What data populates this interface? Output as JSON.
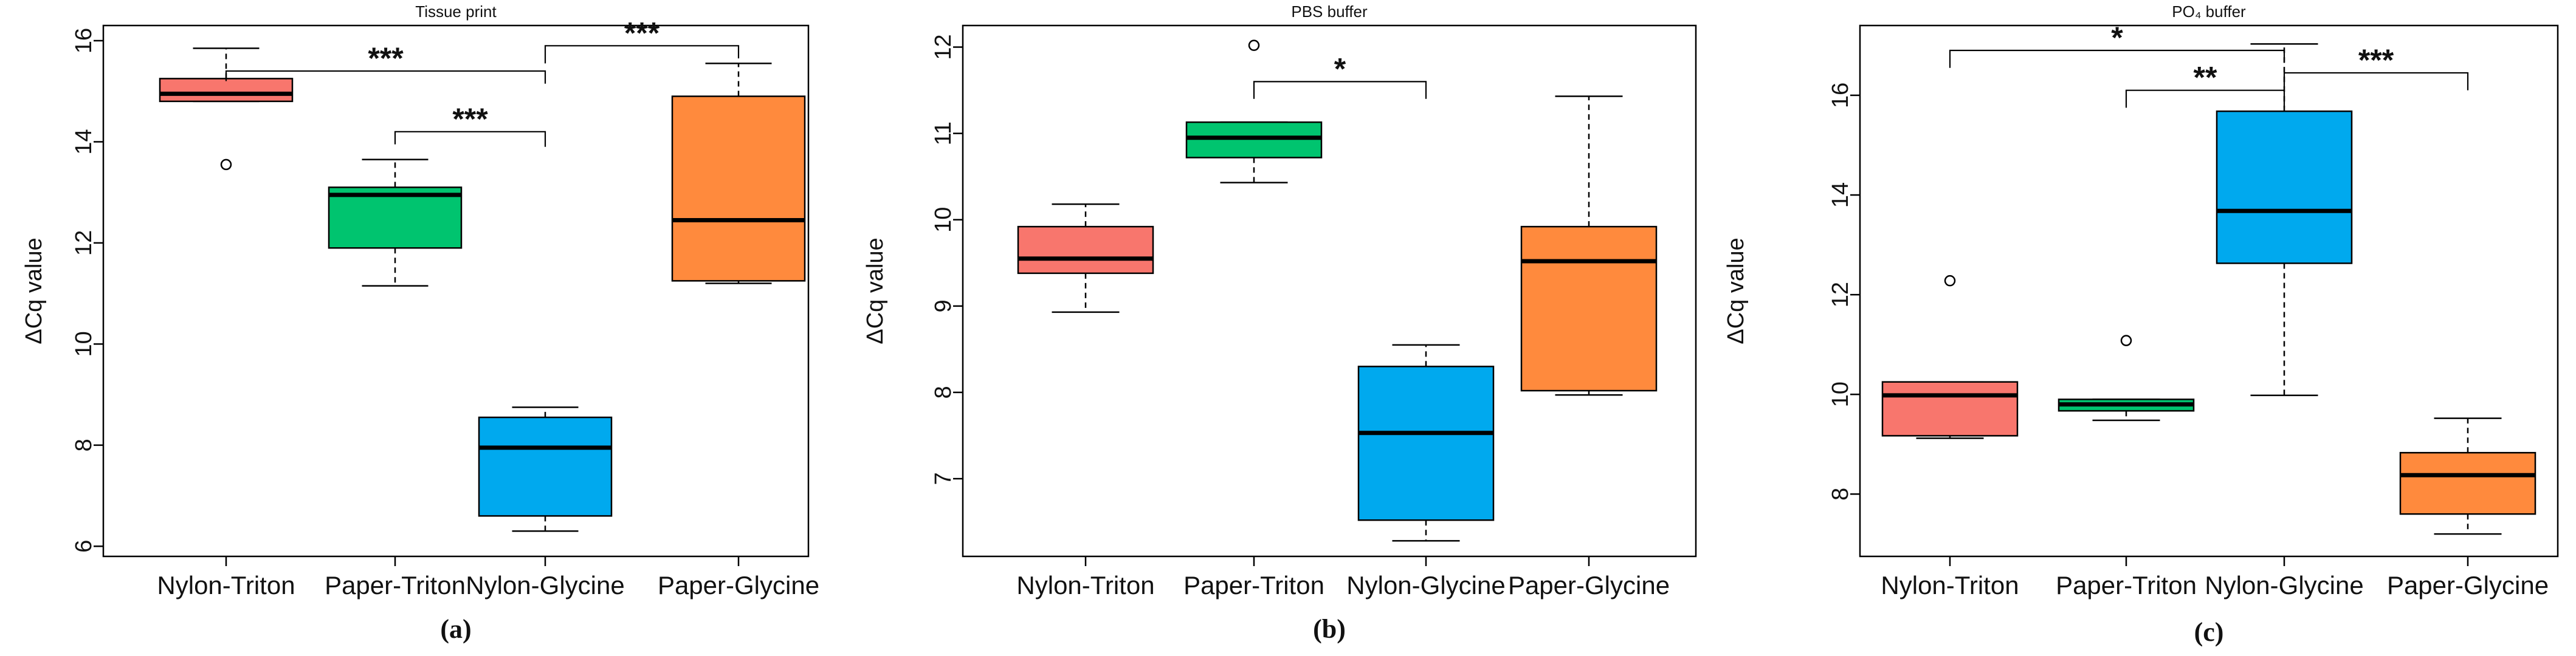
{
  "chart_data": [
    {
      "type": "boxplot",
      "panel_label": "(a)",
      "title": "Tissue print",
      "ylabel": "ΔCq value",
      "ylim": [
        5.8,
        16.3
      ],
      "yticks": [
        6,
        8,
        10,
        12,
        14,
        16
      ],
      "categories": [
        "Nylon-Triton",
        "Paper-Triton",
        "Nylon-Glycine",
        "Paper-Glycine"
      ],
      "boxes": [
        {
          "category": "Nylon-Triton",
          "color": "#F8766D",
          "whisker_low": 14.8,
          "q1": 14.8,
          "median": 14.95,
          "q3": 15.25,
          "whisker_high": 15.85,
          "outliers": [
            13.55
          ]
        },
        {
          "category": "Paper-Triton",
          "color": "#00C46F",
          "whisker_low": 11.15,
          "q1": 11.9,
          "median": 12.95,
          "q3": 13.1,
          "whisker_high": 13.65,
          "outliers": []
        },
        {
          "category": "Nylon-Glycine",
          "color": "#00A9EE",
          "whisker_low": 6.3,
          "q1": 6.6,
          "median": 7.95,
          "q3": 8.55,
          "whisker_high": 8.75,
          "outliers": []
        },
        {
          "category": "Paper-Glycine",
          "color": "#FF8A3D",
          "whisker_low": 11.2,
          "q1": 11.25,
          "median": 12.45,
          "q3": 14.9,
          "whisker_high": 15.55,
          "outliers": []
        }
      ],
      "significance": [
        {
          "from": "Nylon-Triton",
          "to": "Nylon-Glycine",
          "y": 15.4,
          "drop_from": 0.2,
          "drop_to": 0.25,
          "label": "***"
        },
        {
          "from": "Nylon-Glycine",
          "to": "Paper-Glycine",
          "y": 15.9,
          "drop_from": 0.35,
          "drop_to": 0.25,
          "label": "***"
        },
        {
          "from": "Paper-Triton",
          "to": "Nylon-Glycine",
          "y": 14.2,
          "drop_from": 0.25,
          "drop_to": 0.3,
          "label": "***"
        }
      ]
    },
    {
      "type": "boxplot",
      "panel_label": "(b)",
      "title": "PBS buffer",
      "ylabel": "ΔCq value",
      "ylim": [
        6.1,
        12.25
      ],
      "yticks": [
        7,
        8,
        9,
        10,
        11,
        12
      ],
      "categories": [
        "Nylon-Triton",
        "Paper-Triton",
        "Nylon-Glycine",
        "Paper-Glycine"
      ],
      "boxes": [
        {
          "category": "Nylon-Triton",
          "color": "#F8766D",
          "whisker_low": 8.93,
          "q1": 9.38,
          "median": 9.55,
          "q3": 9.92,
          "whisker_high": 10.18,
          "outliers": []
        },
        {
          "category": "Paper-Triton",
          "color": "#00C46F",
          "whisker_low": 10.43,
          "q1": 10.72,
          "median": 10.95,
          "q3": 11.13,
          "whisker_high": 11.13,
          "outliers": [
            12.02
          ]
        },
        {
          "category": "Nylon-Glycine",
          "color": "#00A9EE",
          "whisker_low": 6.28,
          "q1": 6.52,
          "median": 7.53,
          "q3": 8.3,
          "whisker_high": 8.55,
          "outliers": []
        },
        {
          "category": "Paper-Glycine",
          "color": "#FF8A3D",
          "whisker_low": 7.97,
          "q1": 8.02,
          "median": 9.52,
          "q3": 9.92,
          "whisker_high": 11.43,
          "outliers": []
        }
      ],
      "significance": [
        {
          "from": "Paper-Triton",
          "to": "Nylon-Glycine",
          "y": 11.6,
          "drop_from": 0.2,
          "drop_to": 0.2,
          "label": "*"
        }
      ]
    },
    {
      "type": "boxplot",
      "panel_label": "(c)",
      "title": "PO₄ buffer",
      "ylabel": "ΔCq value",
      "ylim": [
        6.75,
        17.4
      ],
      "yticks": [
        8,
        10,
        12,
        14,
        16
      ],
      "categories": [
        "Nylon-Triton",
        "Paper-Triton",
        "Nylon-Glycine",
        "Paper-Glycine"
      ],
      "boxes": [
        {
          "category": "Nylon-Triton",
          "color": "#F8766D",
          "whisker_low": 9.12,
          "q1": 9.17,
          "median": 9.98,
          "q3": 10.25,
          "whisker_high": 10.25,
          "outliers": [
            12.28
          ]
        },
        {
          "category": "Paper-Triton",
          "color": "#00C46F",
          "whisker_low": 9.48,
          "q1": 9.67,
          "median": 9.8,
          "q3": 9.9,
          "whisker_high": 9.9,
          "outliers": [
            11.08
          ]
        },
        {
          "category": "Nylon-Glycine",
          "color": "#00A9EE",
          "whisker_low": 9.98,
          "q1": 12.63,
          "median": 13.68,
          "q3": 15.68,
          "whisker_high": 17.03,
          "outliers": []
        },
        {
          "category": "Paper-Glycine",
          "color": "#FF8A3D",
          "whisker_low": 7.2,
          "q1": 7.6,
          "median": 8.38,
          "q3": 8.83,
          "whisker_high": 9.52,
          "outliers": []
        }
      ],
      "significance": [
        {
          "from": "Nylon-Triton",
          "to": "Nylon-Glycine",
          "y": 16.9,
          "drop_from": 0.35,
          "drop_to": 0.25,
          "label": "*"
        },
        {
          "from": "Paper-Triton",
          "to": "Nylon-Glycine",
          "y": 16.1,
          "drop_from": 0.35,
          "drop_to": 0.35,
          "label": "**"
        },
        {
          "from": "Nylon-Glycine",
          "to": "Paper-Glycine",
          "y": 16.45,
          "drop_from": 0.3,
          "drop_to": 0.35,
          "label": "***"
        }
      ]
    }
  ]
}
